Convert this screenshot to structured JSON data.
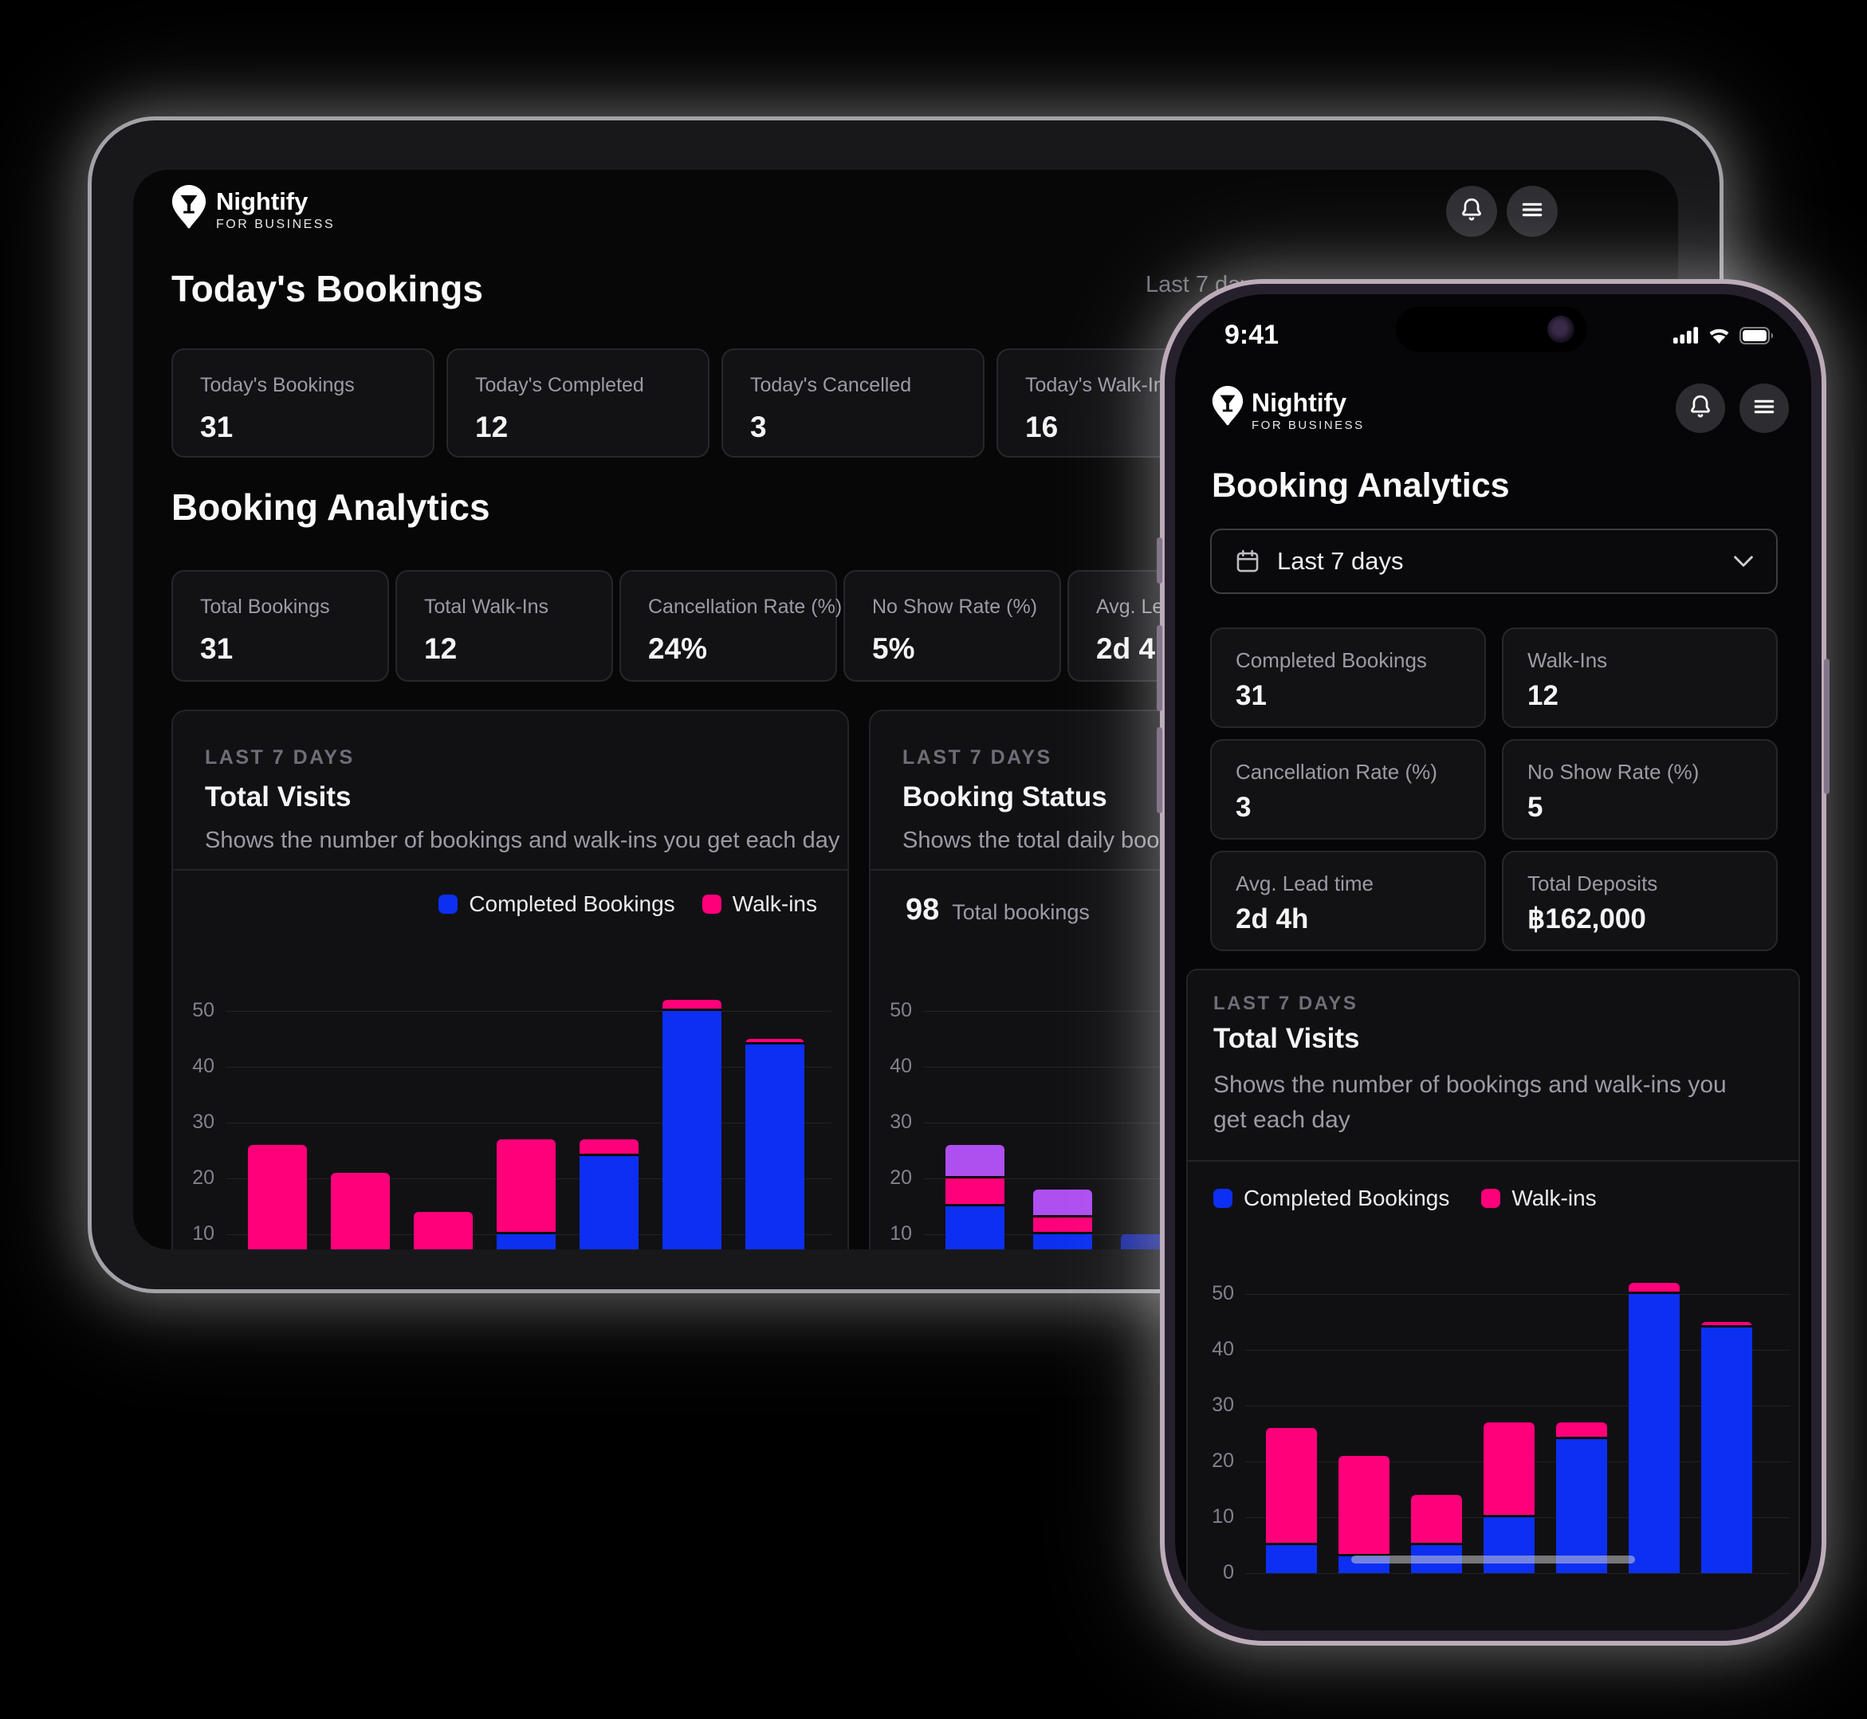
{
  "colors": {
    "accent_blue": "#0d2ff2",
    "accent_pink": "#ff007a",
    "accent_purple": "#ae4ff0",
    "dim_blue_top": "#1b2aa8",
    "dim_blue_bottom": "#0d1668"
  },
  "tablet": {
    "brand": {
      "name": "Nightify",
      "tagline": "FOR BUSINESS"
    },
    "period_label": "Last 7 days",
    "today": {
      "heading": "Today's Bookings",
      "stats": [
        {
          "label": "Today's Bookings",
          "value": "31"
        },
        {
          "label": "Today's Completed",
          "value": "12"
        },
        {
          "label": "Today's Cancelled",
          "value": "3"
        },
        {
          "label": "Today's Walk-Ins",
          "value": "16"
        }
      ]
    },
    "analytics": {
      "heading": "Booking Analytics",
      "stats": [
        {
          "label": "Total Bookings",
          "value": "31"
        },
        {
          "label": "Total Walk-Ins",
          "value": "12"
        },
        {
          "label": "Cancellation Rate (%)",
          "value": "24%"
        },
        {
          "label": "No Show Rate (%)",
          "value": "5%"
        },
        {
          "label": "Avg. Lead time",
          "value": "2d 4h"
        }
      ]
    }
  },
  "phone": {
    "status": {
      "time": "9:41"
    },
    "brand": {
      "name": "Nightify",
      "tagline": "FOR BUSINESS"
    },
    "heading": "Booking Analytics",
    "period": {
      "label": "Last 7 days"
    },
    "stats": [
      {
        "label": "Completed Bookings",
        "value": "31"
      },
      {
        "label": "Walk-Ins",
        "value": "12"
      },
      {
        "label": "Cancellation Rate (%)",
        "value": "3"
      },
      {
        "label": "No Show Rate (%)",
        "value": "5"
      },
      {
        "label": "Avg. Lead time",
        "value": "2d 4h"
      },
      {
        "label": "Total Deposits",
        "value": "฿162,000"
      }
    ]
  },
  "chart_data": [
    {
      "id": "total_visits",
      "type": "bar",
      "stacked": true,
      "subtitle": "LAST 7 DAYS",
      "title": "Total Visits",
      "description": "Shows the number of bookings and walk-ins you get each day",
      "yticks": [
        0,
        10,
        20,
        30,
        40,
        50
      ],
      "ylim": [
        0,
        55
      ],
      "grid": true,
      "categories_visible": false,
      "series": [
        {
          "name": "Completed Bookings",
          "color": "#0d2ff2",
          "values": [
            5,
            3,
            5,
            10,
            24,
            50,
            44
          ]
        },
        {
          "name": "Walk-ins",
          "color": "#ff007a",
          "values": [
            21,
            18,
            9,
            17,
            3,
            2,
            1
          ]
        }
      ]
    },
    {
      "id": "booking_status",
      "type": "bar",
      "stacked": true,
      "subtitle": "LAST 7 DAYS",
      "title": "Booking Status",
      "description": "Shows the total daily booking",
      "total": {
        "value": "98",
        "label": "Total bookings"
      },
      "yticks": [
        10,
        20,
        30,
        40,
        50
      ],
      "ylim": [
        0,
        55
      ],
      "grid": true,
      "categories_visible": false,
      "series": [
        {
          "name": "Completed",
          "color": "#0d2ff2",
          "values": [
            15,
            10,
            10
          ]
        },
        {
          "name": "",
          "color": "#ff007a",
          "values": [
            5,
            3,
            0
          ]
        },
        {
          "name": "",
          "color": "#ae4ff0",
          "values": [
            6,
            5,
            0
          ]
        }
      ]
    }
  ]
}
